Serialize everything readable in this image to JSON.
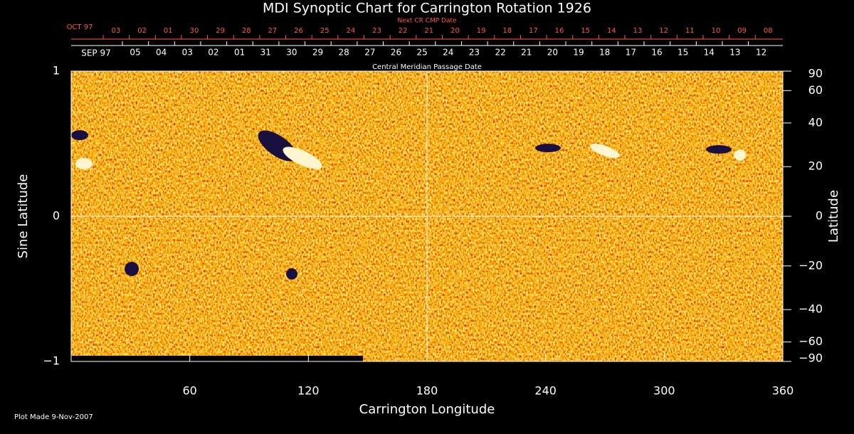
{
  "chart_data": {
    "type": "synoptic-map",
    "title": "MDI Synoptic Chart for Carrington Rotation 1926",
    "x_label": "Carrington Longitude",
    "y_label": "Sine Latitude",
    "y2_label": "Latitude",
    "xlim": [
      0,
      360
    ],
    "xticks": [
      60,
      120,
      180,
      240,
      300,
      360
    ],
    "ylim": [
      -1,
      1
    ],
    "yticks": [
      {
        "value": -1,
        "label": "−1"
      },
      0,
      1
    ],
    "y2scale": "sine",
    "y2lim": [
      -90,
      90
    ],
    "y2ticks": [
      {
        "value": -90,
        "label": "−90"
      },
      {
        "value": -60,
        "label": "−60"
      },
      {
        "value": -40,
        "label": "−40"
      },
      {
        "value": -20,
        "label": "−20"
      },
      0,
      20,
      40,
      60,
      90
    ],
    "top_axis_title": "Next CR CMP Date",
    "top_axis_month": "OCT 97",
    "top_axis_dates": [
      "03",
      "02",
      "01",
      "30",
      "29",
      "28",
      "27",
      "26",
      "25",
      "24",
      "23",
      "22",
      "21",
      "20",
      "19",
      "18",
      "17",
      "16",
      "15",
      "14",
      "13",
      "12",
      "11",
      "10",
      "09",
      "08"
    ],
    "cmp_axis_title": "Central Meridian Passage Date",
    "cmp_axis_month": "SEP 97",
    "cmp_axis_dates": [
      "05",
      "04",
      "03",
      "02",
      "01",
      "31",
      "30",
      "29",
      "28",
      "27",
      "26",
      "25",
      "24",
      "23",
      "22",
      "21",
      "20",
      "19",
      "18",
      "17",
      "16",
      "15",
      "14",
      "13",
      "12"
    ],
    "footer": "Plot Made  9-Nov-2007"
  }
}
